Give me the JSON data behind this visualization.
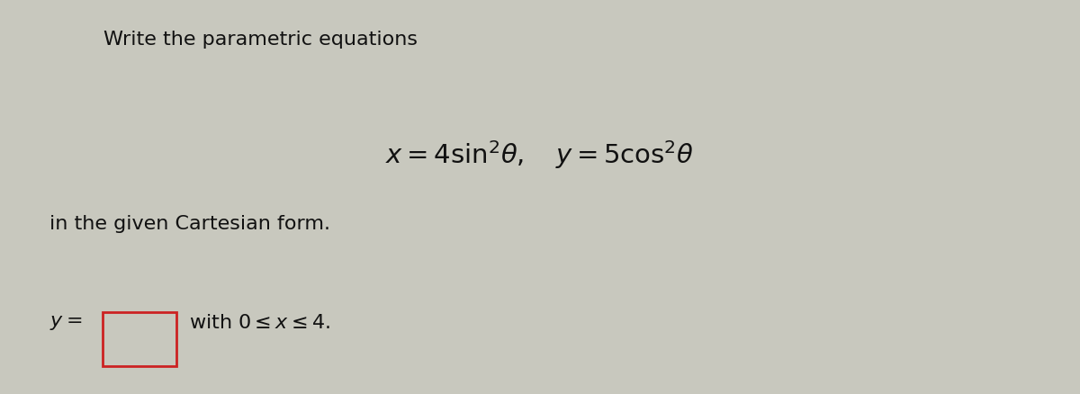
{
  "title_text": "Write the parametric equations",
  "equation_text": "$x = 4\\sin^2\\!\\theta,\\quad y = 5\\cos^2\\!\\theta$",
  "cartesian_text": "in the given Cartesian form.",
  "answer_label": "$y=$",
  "constraint_text": "with $0 \\leq x \\leq 4$.",
  "bg_color": "#c8c8be",
  "text_color": "#111111",
  "title_fontsize": 16,
  "eq_fontsize": 21,
  "body_fontsize": 16,
  "box_color": "#c8c8be",
  "box_border": "#cc2222",
  "fig_width": 12.0,
  "fig_height": 4.39,
  "dpi": 100
}
